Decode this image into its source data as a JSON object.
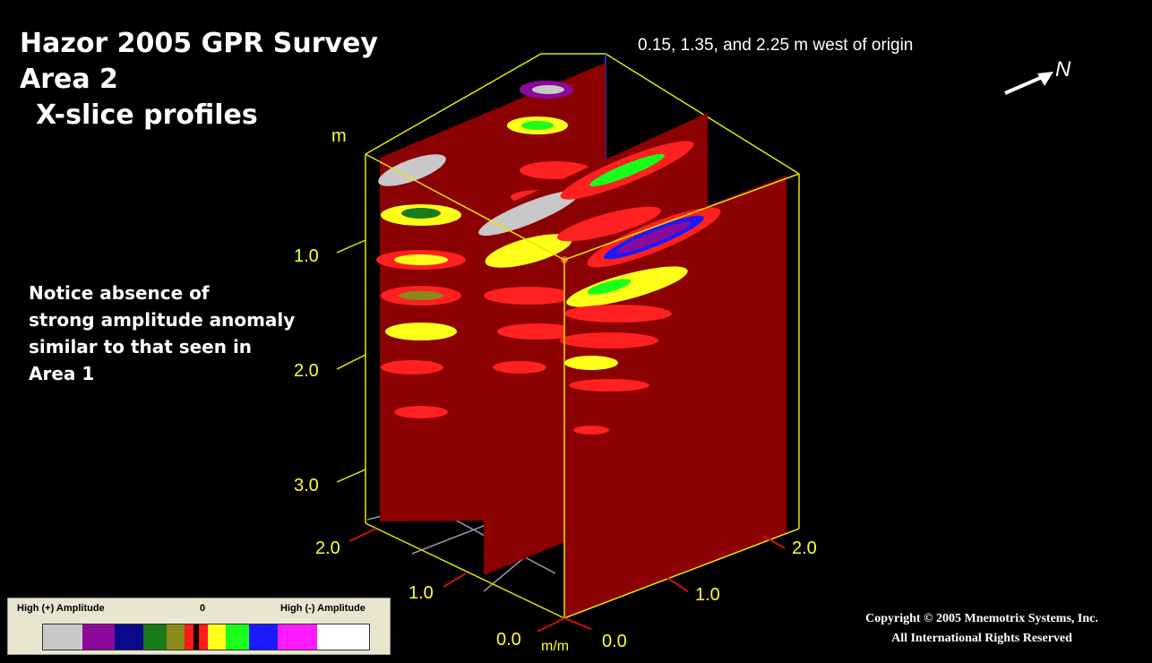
{
  "title_lines": [
    "Hazor 2005 GPR Survey",
    "Area 2",
    "X-slice profiles"
  ],
  "subtitle": "0.15, 1.35, and 2.25 m west of origin",
  "north_label": "N",
  "note_lines": [
    "Notice absence of",
    "strong amplitude anomaly",
    "similar to that seen in",
    "Area 1"
  ],
  "depth_axis": {
    "unit_label": "m",
    "ticks": [
      "1.0",
      "2.0",
      "3.0"
    ]
  },
  "left_axis": {
    "ticks": [
      "2.0",
      "1.0",
      "0.0"
    ],
    "unit_label": "m/m"
  },
  "right_axis": {
    "ticks": [
      "0.0",
      "1.0",
      "2.0"
    ]
  },
  "legend": {
    "left_label": "High (+) Amplitude",
    "center_label": "0",
    "right_label": "High (-) Amplitude",
    "colors": [
      "#c8c8c8",
      "#8b0a9a",
      "#0a0a8a",
      "#1a7a1a",
      "#8a8a1a",
      "#ff1a1a",
      "#1a0000",
      "#ff1a1a",
      "#ffff1a",
      "#1aff1a",
      "#1a1aff",
      "#ff1aff",
      "#ffffff"
    ]
  },
  "copyright_lines": [
    "Copyright © 2005 Mnemotrix Systems, Inc.",
    "All International Rights Reserved"
  ],
  "colors": {
    "background": "#000000",
    "frame": "#e6e600",
    "profile_base": "#8b0000",
    "tick_text": "#ffff33"
  }
}
